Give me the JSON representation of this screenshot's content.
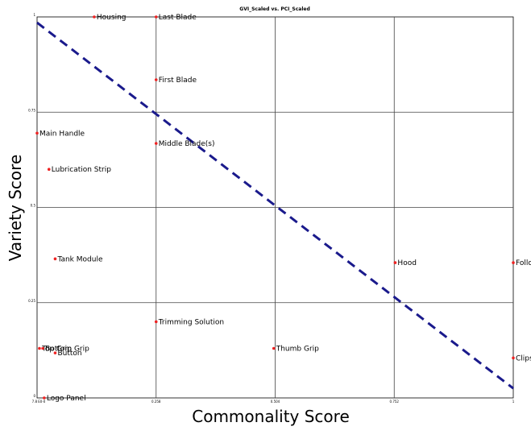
{
  "chart_data": {
    "type": "scatter",
    "title": "GVI_Scaled vs. PCI_Scaled",
    "xlabel": "Commonality Score",
    "ylabel": "Variety Score",
    "xlim": [
      0,
      1
    ],
    "ylim": [
      0,
      1
    ],
    "x_ticks": [
      {
        "value": 0,
        "label": "7.8 E0-0"
      },
      {
        "value": 0.25,
        "label": "0.258"
      },
      {
        "value": 0.5,
        "label": "0.504"
      },
      {
        "value": 0.75,
        "label": "0.752"
      },
      {
        "value": 1,
        "label": "1"
      }
    ],
    "y_ticks": [
      {
        "value": 0,
        "label": "0"
      },
      {
        "value": 0.25,
        "label": "0.25"
      },
      {
        "value": 0.5,
        "label": "0.5"
      },
      {
        "value": 0.75,
        "label": "0.75"
      },
      {
        "value": 1,
        "label": "1"
      }
    ],
    "grid": true,
    "point_color": "#ee2222",
    "line_color": "#1a1a8c",
    "reference_line": {
      "style": "dashed",
      "x": [
        0,
        1
      ],
      "y": [
        0.985,
        0.025
      ]
    },
    "points": [
      {
        "label": "Housing",
        "x": 0.12,
        "y": 1.0
      },
      {
        "label": "Last Blade",
        "x": 0.25,
        "y": 1.0
      },
      {
        "label": "First Blade",
        "x": 0.25,
        "y": 0.835
      },
      {
        "label": "Main Handle",
        "x": 0.0,
        "y": 0.695
      },
      {
        "label": "Middle Blade(s)",
        "x": 0.25,
        "y": 0.668
      },
      {
        "label": "Lubrication Strip",
        "x": 0.025,
        "y": 0.6
      },
      {
        "label": "Tank Module",
        "x": 0.038,
        "y": 0.365
      },
      {
        "label": "Hood",
        "x": 0.752,
        "y": 0.355
      },
      {
        "label": "Follo",
        "x": 1.0,
        "y": 0.355
      },
      {
        "label": "Trimming Solution",
        "x": 0.25,
        "y": 0.2
      },
      {
        "label": "Thumb Grip",
        "x": 0.497,
        "y": 0.13
      },
      {
        "label": "Top Grip",
        "x": 0.005,
        "y": 0.13
      },
      {
        "label": "Bottom Grip",
        "x": 0.012,
        "y": 0.13
      },
      {
        "label": "Button",
        "x": 0.038,
        "y": 0.118
      },
      {
        "label": "Clips",
        "x": 1.0,
        "y": 0.105
      },
      {
        "label": "Logo Panel",
        "x": 0.015,
        "y": 0.0
      }
    ]
  }
}
